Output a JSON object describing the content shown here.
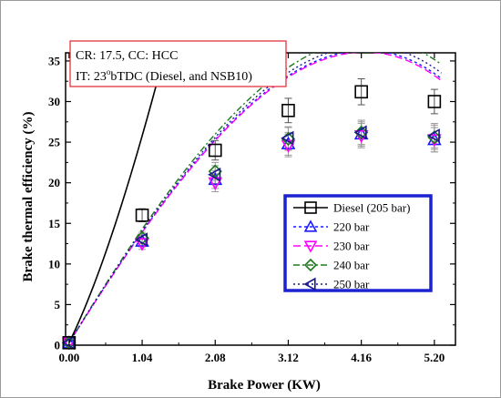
{
  "chart_data": {
    "type": "line",
    "xlabel": "Brake Power  (KW)",
    "ylabel": "Brake thermal efficiency (%)",
    "xlim": [
      -0.05,
      5.5
    ],
    "ylim": [
      0,
      36
    ],
    "x_ticks": [
      "0.00",
      "1.04",
      "2.08",
      "3.12",
      "4.16",
      "5.20"
    ],
    "y_ticks": [
      "0",
      "5",
      "10",
      "15",
      "20",
      "25",
      "30",
      "35"
    ],
    "annotation": {
      "line1": "CR: 17.5, CC: HCC",
      "line2_pre": "IT: 23",
      "line2_sup": "o",
      "line2_post": "bTDC (Diesel, and NSB10)"
    },
    "legend_placement": "bottom-right",
    "series": [
      {
        "name": "Diesel (205 bar)",
        "color": "#000000",
        "marker": "square",
        "dash": "",
        "curve_width": 1.6,
        "x": [
          0,
          1.04,
          2.08,
          3.12,
          4.16,
          5.2
        ],
        "values": [
          0.3,
          16.0,
          24.0,
          28.9,
          31.2,
          30.0
        ],
        "errors": [
          0,
          0.8,
          1.2,
          1.5,
          1.6,
          1.5
        ],
        "fit": [
          0.3,
          17.63,
          7.64,
          -1.0
        ]
      },
      {
        "name": "220 bar",
        "color": "#1a1aff",
        "marker": "triangle-up",
        "dash": "3,3",
        "curve_width": 1.4,
        "x": [
          0,
          1.04,
          2.08,
          3.12,
          4.16,
          5.2
        ],
        "values": [
          0.3,
          12.8,
          20.4,
          24.8,
          26.0,
          25.3
        ],
        "errors": [
          0,
          0.7,
          1.1,
          1.4,
          1.5,
          1.5
        ],
        "fit": [
          0.3,
          13.82,
          -0.485,
          -0.182
        ]
      },
      {
        "name": "230 bar",
        "color": "#ff00ff",
        "marker": "triangle-down",
        "dash": "8,4",
        "curve_width": 1.4,
        "x": [
          0,
          1.04,
          2.08,
          3.12,
          4.16,
          5.2
        ],
        "values": [
          0.3,
          12.5,
          20.0,
          24.6,
          25.8,
          25.3
        ],
        "errors": [
          0,
          0.7,
          1.1,
          1.4,
          1.5,
          1.5
        ],
        "fit": [
          0.3,
          13.77,
          -0.485,
          -0.182
        ]
      },
      {
        "name": "240 bar",
        "color": "#1e7a1e",
        "marker": "diamond",
        "dash": "7,3,2,3",
        "curve_width": 1.4,
        "x": [
          0,
          1.04,
          2.08,
          3.12,
          4.16,
          5.2
        ],
        "values": [
          0.3,
          13.2,
          21.4,
          25.4,
          26.2,
          25.6
        ],
        "errors": [
          0,
          0.7,
          1.1,
          1.4,
          1.5,
          1.5
        ],
        "fit": [
          0.3,
          14.15,
          -0.485,
          -0.182
        ]
      },
      {
        "name": "250 bar",
        "color": "#1a1a8c",
        "marker": "triangle-left",
        "dash": "2,3",
        "curve_width": 1.4,
        "x": [
          0,
          1.04,
          2.08,
          3.12,
          4.16,
          5.2
        ],
        "values": [
          0.3,
          13.0,
          21.0,
          25.5,
          26.2,
          25.8
        ],
        "errors": [
          0,
          0.7,
          1.1,
          1.4,
          1.5,
          1.5
        ],
        "fit": [
          0.3,
          13.95,
          -0.485,
          -0.182
        ]
      }
    ]
  }
}
